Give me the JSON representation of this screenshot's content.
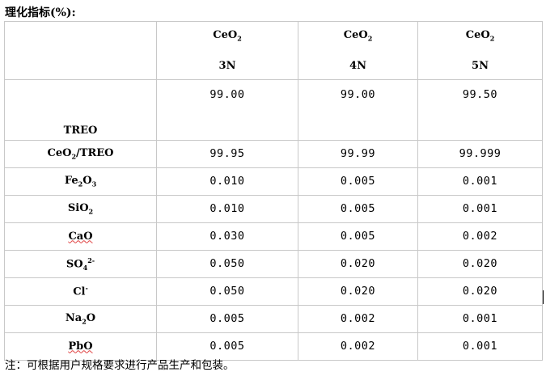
{
  "title": "理化指标(%):",
  "columns": [
    {
      "formula": "CeO",
      "sub": "2",
      "grade": "3N"
    },
    {
      "formula": "CeO",
      "sub": "2",
      "grade": "4N"
    },
    {
      "formula": "CeO",
      "sub": "2",
      "grade": "5N"
    }
  ],
  "rows": [
    {
      "label": "TREO",
      "values": [
        "99.00",
        "99.00",
        "99.50"
      ]
    },
    {
      "label_a": "CeO",
      "label_sub": "2",
      "label_b": "/TREO",
      "values": [
        "99.95",
        "99.99",
        "99.999"
      ]
    },
    {
      "label_a": "Fe",
      "label_sub": "2",
      "label_b": "O",
      "label_sub2": "3",
      "values": [
        "0.010",
        "0.005",
        "0.001"
      ]
    },
    {
      "label_a": "SiO",
      "label_sub": "2",
      "values": [
        "0.010",
        "0.005",
        "0.001"
      ]
    },
    {
      "label": "CaO",
      "values": [
        "0.030",
        "0.005",
        "0.002"
      ]
    },
    {
      "label_a": "SO",
      "label_sub": "4",
      "label_sup": "2-",
      "values": [
        "0.050",
        "0.020",
        "0.020"
      ]
    },
    {
      "label_a": "Cl",
      "label_sup": "-",
      "values": [
        "0.050",
        "0.020",
        "0.020"
      ]
    },
    {
      "label_a": "Na",
      "label_sub": "2",
      "label_b": "O",
      "values": [
        "0.005",
        "0.002",
        "0.001"
      ]
    },
    {
      "label": "PbO",
      "values": [
        "0.005",
        "0.002",
        "0.001"
      ]
    }
  ],
  "note": "注：可根据用户规格要求进行产品生产和包装。"
}
